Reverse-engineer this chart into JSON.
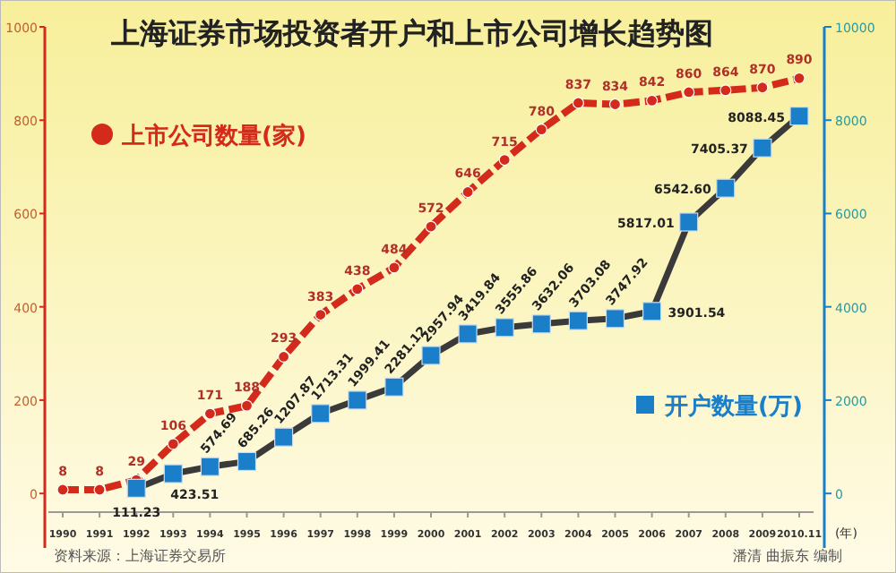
{
  "chart_data": {
    "type": "line",
    "title": "上海证券市场投资者开户和上市公司增长趋势图",
    "xlabel": "(年)",
    "categories": [
      "1990",
      "1991",
      "1992",
      "1993",
      "1994",
      "1995",
      "1996",
      "1997",
      "1998",
      "1999",
      "2000",
      "2001",
      "2002",
      "2003",
      "2004",
      "2005",
      "2006",
      "2007",
      "2008",
      "2009",
      "2010.11"
    ],
    "series": [
      {
        "name": "上市公司数量(家)",
        "color": "#d42a1c",
        "marker": "circle",
        "line_style": "dashed",
        "values": [
          8,
          8,
          29,
          106,
          171,
          188,
          293,
          383,
          438,
          484,
          572,
          646,
          715,
          780,
          837,
          834,
          842,
          860,
          864,
          870,
          890
        ]
      },
      {
        "name": "开户数量(万)",
        "color": "#1a7fc8",
        "marker": "square",
        "axis": "y2",
        "values": [
          null,
          null,
          111.23,
          423.51,
          574.69,
          685.26,
          1207.87,
          1713.31,
          1999.41,
          2281.12,
          2957.94,
          3419.84,
          3555.86,
          3632.06,
          3703.08,
          3747.92,
          3901.54,
          5817.01,
          6542.6,
          7405.37,
          8088.45
        ],
        "value_labels": [
          null,
          null,
          "111.23",
          "423.51",
          "574.69",
          "685.26",
          "1207.87",
          "1713.31",
          "1999.41",
          "2281.12",
          "2957.94",
          "3419.84",
          "3555.86",
          "3632.06",
          "3703.08",
          "3747.92",
          "3901.54",
          "5817.01",
          "6542.60",
          "7405.37",
          "8088.45"
        ]
      }
    ],
    "ylim": [
      -40,
      1000
    ],
    "yticks": [
      0,
      200,
      400,
      600,
      800,
      1000
    ],
    "y2lim": [
      -400,
      10000
    ],
    "y2ticks": [
      0,
      2000,
      4000,
      6000,
      8000,
      10000
    ],
    "data_labels": true,
    "legend": "left",
    "grid": false,
    "annotations": [
      "资料来源：上海证券交易所",
      "潘清 曲振东 编制"
    ]
  }
}
